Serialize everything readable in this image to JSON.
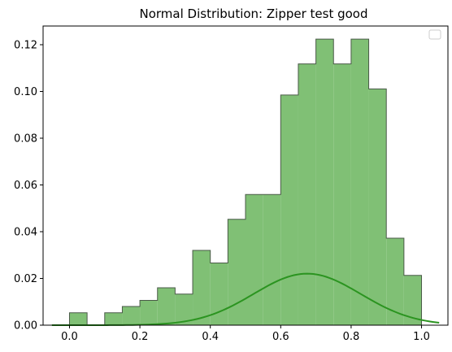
{
  "chart_data": {
    "type": "bar",
    "title": "Normal Distribution: Zipper test good",
    "xlabel": "",
    "ylabel": "",
    "xlim": [
      -0.075,
      1.075
    ],
    "ylim": [
      0,
      0.128
    ],
    "x_ticks": [
      "0.0",
      "0.2",
      "0.4",
      "0.6",
      "0.8",
      "1.0"
    ],
    "y_ticks": [
      "0.00",
      "0.02",
      "0.04",
      "0.06",
      "0.08",
      "0.10",
      "0.12"
    ],
    "grid": false,
    "legend": "top-right (empty)",
    "histogram": {
      "bin_edges": [
        -0.05,
        0.0,
        0.05,
        0.1,
        0.15,
        0.2,
        0.25,
        0.3,
        0.35,
        0.4,
        0.45,
        0.5,
        0.55,
        0.6,
        0.65,
        0.7,
        0.75,
        0.8,
        0.85,
        0.9,
        0.95,
        1.0
      ],
      "values": [
        0.0,
        0.0053,
        0.0,
        0.0053,
        0.008,
        0.0106,
        0.016,
        0.0133,
        0.032,
        0.0266,
        0.0453,
        0.0559,
        0.0559,
        0.0985,
        0.1118,
        0.1224,
        0.1118,
        0.1224,
        0.1011,
        0.0372,
        0.0213
      ],
      "fill_color": "#80c075",
      "edge_color": "#4a5a48"
    },
    "curve": {
      "type": "normal-pdf-line",
      "color": "#2b9420",
      "mean": 0.675,
      "std": 0.152,
      "scale": 0.0084,
      "x_range": [
        -0.05,
        1.05
      ]
    }
  }
}
